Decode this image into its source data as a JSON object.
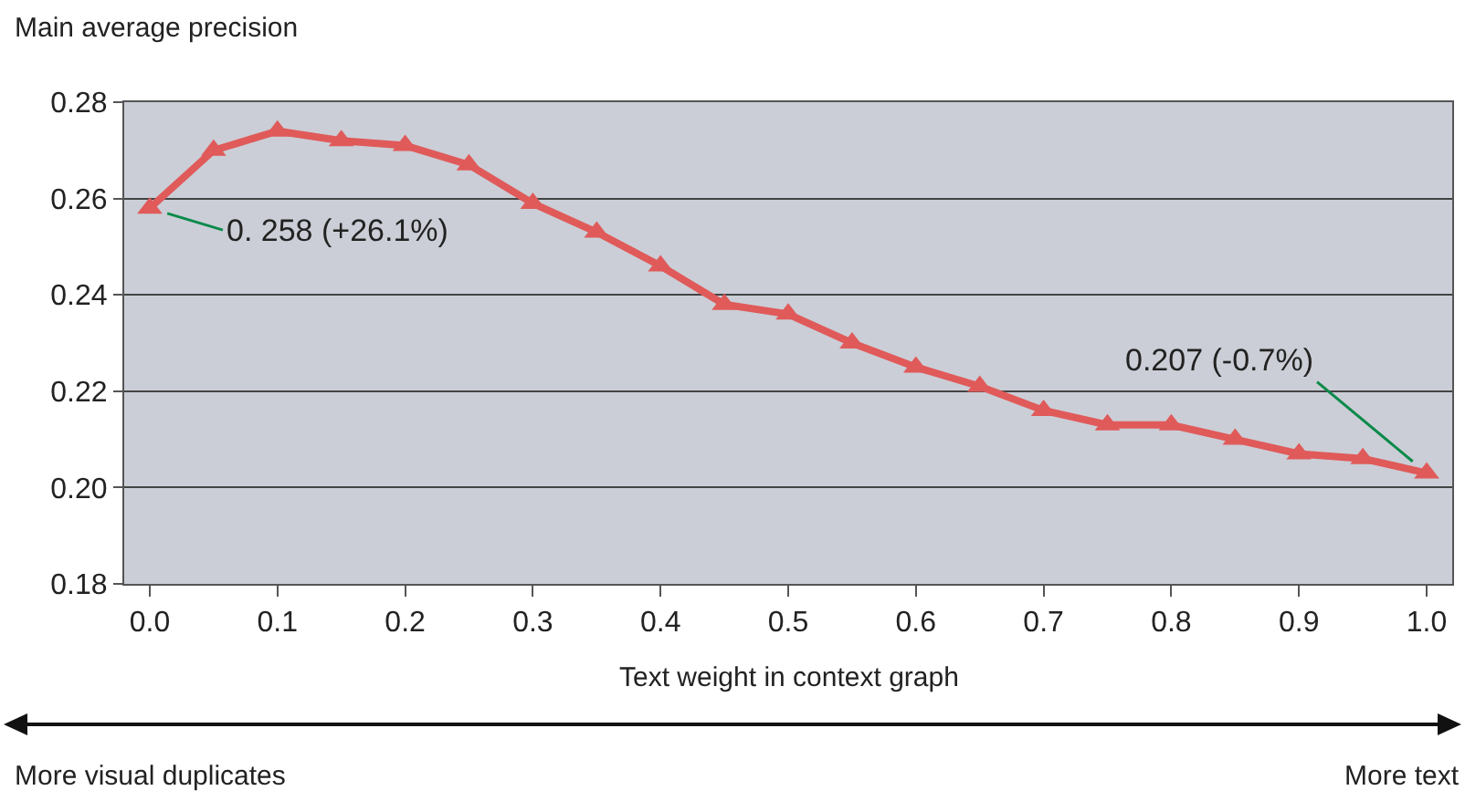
{
  "chart_data": {
    "type": "line",
    "ylabel": "Main average precision",
    "xlabel": "Text weight in context graph",
    "x": [
      0,
      0.05,
      0.1,
      0.15,
      0.2,
      0.25,
      0.3,
      0.35,
      0.4,
      0.45,
      0.5,
      0.55,
      0.6,
      0.65,
      0.7,
      0.75,
      0.8,
      0.85,
      0.9,
      0.95,
      1.0
    ],
    "series": [
      {
        "color": "#e05a5a",
        "values": [
          0.258,
          0.27,
          0.274,
          0.272,
          0.271,
          0.267,
          0.259,
          0.253,
          0.246,
          0.238,
          0.236,
          0.23,
          0.225,
          0.221,
          0.216,
          0.213,
          0.213,
          0.21,
          0.207,
          0.206,
          0.203
        ]
      }
    ],
    "xlim": [
      -0.02,
      1.02
    ],
    "xticks": [
      {
        "value": 0,
        "label": "0.0"
      },
      {
        "value": 0.1,
        "label": "0.1"
      },
      {
        "value": 0.2,
        "label": "0.2"
      },
      {
        "value": 0.3,
        "label": "0.3"
      },
      {
        "value": 0.4,
        "label": "0.4"
      },
      {
        "value": 0.5,
        "label": "0.5"
      },
      {
        "value": 0.6,
        "label": "0.6"
      },
      {
        "value": 0.7,
        "label": "0.7"
      },
      {
        "value": 0.8,
        "label": "0.8"
      },
      {
        "value": 0.9,
        "label": "0.9"
      },
      {
        "value": 1,
        "label": "1.0"
      }
    ],
    "ylim": [
      0.18,
      0.28
    ],
    "yticks": [
      {
        "value": 0.18,
        "label": "0.18"
      },
      {
        "value": 0.2,
        "label": "0.20"
      },
      {
        "value": 0.22,
        "label": "0.22"
      },
      {
        "value": 0.24,
        "label": "0.24"
      },
      {
        "value": 0.26,
        "label": "0.26"
      },
      {
        "value": 0.28,
        "label": "0.28"
      }
    ],
    "grid": "y",
    "marker": "triangle",
    "line_style": "solid",
    "annotations": [
      {
        "text": "0. 258 (+26.1%)",
        "x": 0,
        "y": 0.258
      },
      {
        "text": "0.207 (-0.7%)",
        "x": 1,
        "y": 0.203
      },
      "More visual duplicates",
      "More text"
    ]
  }
}
